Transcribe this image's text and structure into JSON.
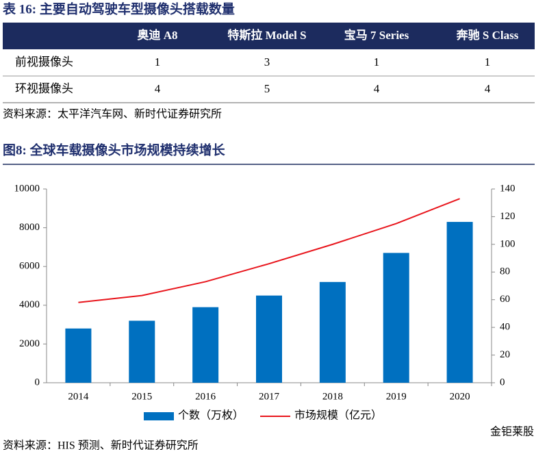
{
  "table": {
    "title": "表 16:  主要自动驾驶车型摄像头搭载数量",
    "columns": [
      "奥迪 A8",
      "特斯拉 Model S",
      "宝马 7 Series",
      "奔驰 S Class"
    ],
    "rows": [
      {
        "label": "前视摄像头",
        "values": [
          1,
          3,
          1,
          1
        ]
      },
      {
        "label": "环视摄像头",
        "values": [
          4,
          5,
          4,
          4
        ]
      }
    ],
    "source": "资料来源：太平洋汽车网、新时代证券研究所"
  },
  "chart_data": {
    "type": "bar",
    "title": "图8:  全球车载摄像头市场规模持续增长",
    "categories": [
      "2014",
      "2015",
      "2016",
      "2017",
      "2018",
      "2019",
      "2020"
    ],
    "series": [
      {
        "name": "个数（万枚）",
        "type": "bar",
        "color": "#0070c0",
        "values": [
          2800,
          3200,
          3900,
          4500,
          5200,
          6700,
          8300
        ]
      },
      {
        "name": "市场规模（亿元）",
        "type": "line",
        "axis": "y2",
        "color": "#e8141b",
        "values": [
          58,
          63,
          73,
          86,
          100,
          115,
          133
        ]
      }
    ],
    "ylim": [
      0,
      10000
    ],
    "yticks": [
      0,
      2000,
      4000,
      6000,
      8000,
      10000
    ],
    "y2lim": [
      0,
      140
    ],
    "y2ticks": [
      0,
      20,
      40,
      60,
      80,
      100,
      120,
      140
    ],
    "grid": false,
    "legend": "bottom",
    "source": "资料来源：HIS 预测、新时代证券研究所"
  },
  "watermark": "金钜莱股"
}
